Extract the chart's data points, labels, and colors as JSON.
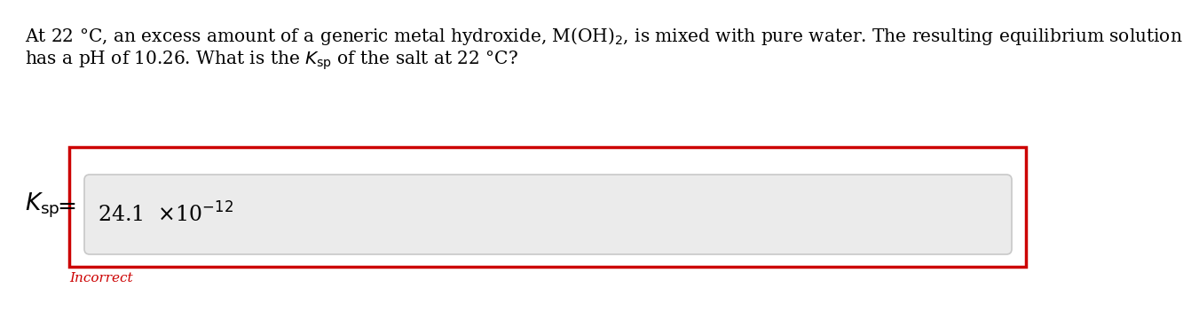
{
  "background_color": "#ffffff",
  "text_color": "#000000",
  "incorrect_color": "#cc0000",
  "outer_box_color": "#cc0000",
  "input_box_bg": "#ebebeb",
  "input_box_border": "#cccccc",
  "font_size_question": 14.5,
  "font_size_answer": 17,
  "font_size_lhs": 19,
  "font_size_incorrect": 11,
  "incorrect_text": "Incorrect",
  "q_line1": "At 22 °C, an excess amount of a generic metal hydroxide, M(OH)$_2$, is mixed with pure water. The resulting equilibrium solution",
  "q_line2": "has a pH of 10.26. What is the $K_{\\mathrm{sp}}$ of the salt at 22 °C?",
  "answer": "24.1  $\\times$10$^{-12}$",
  "lhs": "$K_{\\mathrm{sp}}$",
  "equals": "="
}
